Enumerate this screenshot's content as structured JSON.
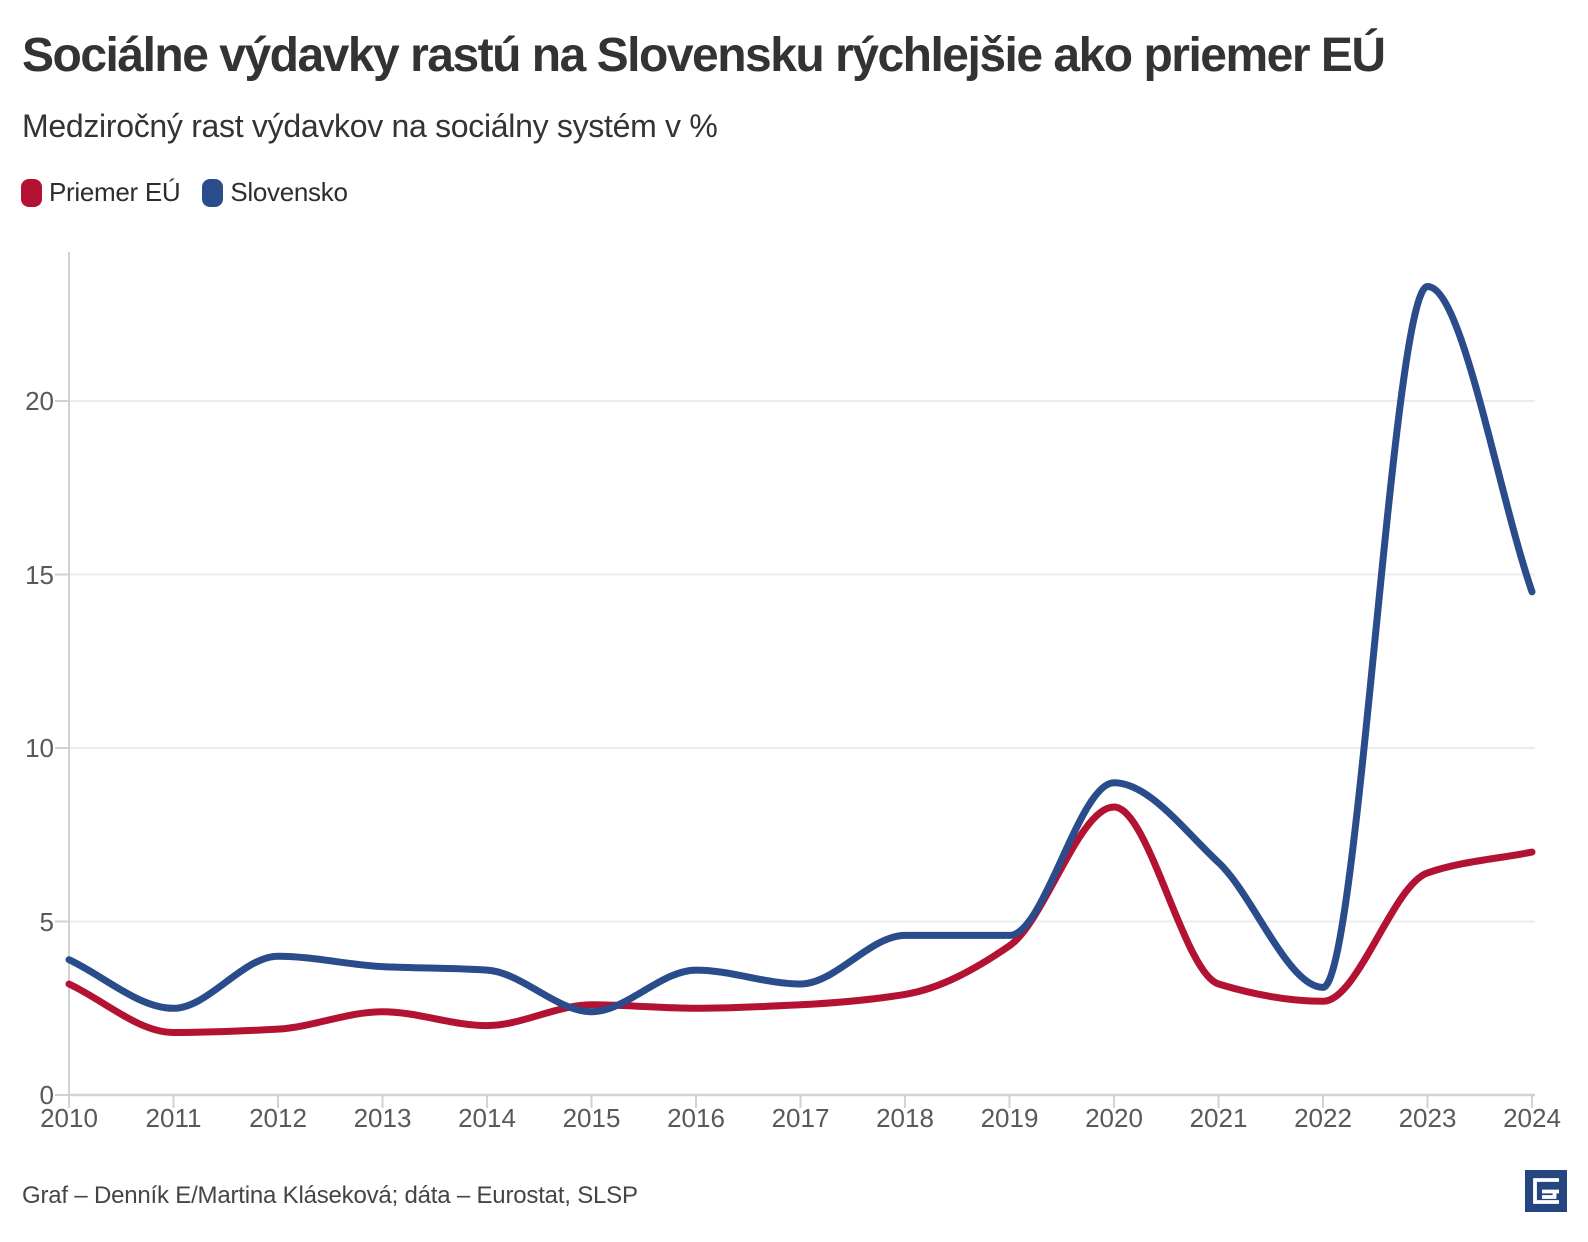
{
  "header": {
    "title": "Sociálne výdavky rastú na Slovensku rýchlejšie ako priemer EÚ",
    "subtitle": "Medziročný rast výdavkov na sociálny systém v %"
  },
  "legend": {
    "items": [
      {
        "label": "Priemer EÚ",
        "color": "#b31233"
      },
      {
        "label": "Slovensko",
        "color": "#2a4c8a"
      }
    ]
  },
  "chart_data": {
    "type": "line",
    "title": "Sociálne výdavky rastú na Slovensku rýchlejšie ako priemer EÚ",
    "subtitle": "Medziročný rast výdavkov na sociálny systém v %",
    "unit": "%",
    "x": [
      2010,
      2011,
      2012,
      2013,
      2014,
      2015,
      2016,
      2017,
      2018,
      2019,
      2020,
      2021,
      2022,
      2023,
      2024
    ],
    "x_tick_labels": [
      "2010",
      "2011",
      "2012",
      "2013",
      "2014",
      "2015",
      "2016",
      "2017",
      "2018",
      "2019",
      "2020",
      "2021",
      "2022",
      "2023",
      "2024"
    ],
    "yticks": [
      0,
      5,
      10,
      15,
      20
    ],
    "y_tick_labels": [
      "0",
      "5",
      "10",
      "15",
      "20"
    ],
    "ylim": [
      0,
      24
    ],
    "grid": true,
    "legend_position": "top-left",
    "curve": "monotone",
    "series": [
      {
        "name": "Priemer EÚ",
        "color": "#b31233",
        "values": [
          3.2,
          1.8,
          1.9,
          2.4,
          2.0,
          2.6,
          2.5,
          2.6,
          2.9,
          4.3,
          8.3,
          3.2,
          2.7,
          6.4,
          7.0
        ]
      },
      {
        "name": "Slovensko",
        "color": "#2a4c8a",
        "values": [
          3.9,
          2.5,
          4.0,
          3.7,
          3.6,
          2.4,
          3.6,
          3.2,
          4.6,
          4.6,
          9.0,
          6.7,
          3.1,
          23.3,
          14.5
        ]
      }
    ],
    "style": {
      "grid_color": "#ececec",
      "axis_color": "#d2d2d2",
      "line_width": 7
    }
  },
  "footer": {
    "credit": "Graf – Denník E/Martina Kláseková; dáta – Eurostat, SLSP",
    "logo": "dennik-e-logo",
    "logo_color": "#254580"
  }
}
